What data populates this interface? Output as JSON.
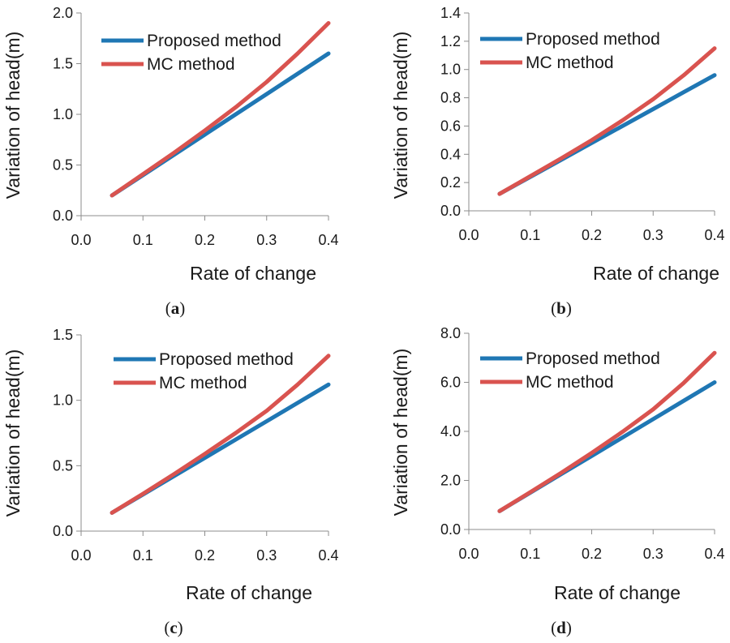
{
  "chart_data": [
    {
      "type": "line",
      "panel": "a",
      "xlabel": "Rate of change",
      "ylabel": "Variation of head(m)",
      "xlim": [
        0.0,
        0.4
      ],
      "ylim": [
        0.0,
        2.0
      ],
      "x_ticks": [
        "0.0",
        "0.1",
        "0.2",
        "0.3",
        "0.4"
      ],
      "y_ticks": [
        "0.0",
        "0.5",
        "1.0",
        "1.5",
        "2.0"
      ],
      "legend_position": "top-left",
      "series": [
        {
          "name": "Proposed method",
          "color": "#1f77b4",
          "x": [
            0.05,
            0.1,
            0.15,
            0.2,
            0.25,
            0.3,
            0.35,
            0.4
          ],
          "values": [
            0.2,
            0.4,
            0.6,
            0.8,
            1.0,
            1.2,
            1.4,
            1.6
          ]
        },
        {
          "name": "MC method",
          "color": "#d9534f",
          "x": [
            0.05,
            0.1,
            0.15,
            0.2,
            0.25,
            0.3,
            0.35,
            0.4
          ],
          "values": [
            0.2,
            0.41,
            0.62,
            0.84,
            1.07,
            1.32,
            1.6,
            1.9
          ]
        }
      ]
    },
    {
      "type": "line",
      "panel": "b",
      "xlabel": "Rate of change",
      "ylabel": "Variation of head(m)",
      "xlim": [
        0.0,
        0.4
      ],
      "ylim": [
        0.0,
        1.4
      ],
      "x_ticks": [
        "0.0",
        "0.1",
        "0.2",
        "0.3",
        "0.4"
      ],
      "y_ticks": [
        "0.0",
        "0.2",
        "0.4",
        "0.6",
        "0.8",
        "1.0",
        "1.2",
        "1.4"
      ],
      "legend_position": "top-left",
      "series": [
        {
          "name": "Proposed method",
          "color": "#1f77b4",
          "x": [
            0.05,
            0.1,
            0.15,
            0.2,
            0.25,
            0.3,
            0.35,
            0.4
          ],
          "values": [
            0.12,
            0.24,
            0.36,
            0.48,
            0.6,
            0.72,
            0.84,
            0.96
          ]
        },
        {
          "name": "MC method",
          "color": "#d9534f",
          "x": [
            0.05,
            0.1,
            0.15,
            0.2,
            0.25,
            0.3,
            0.35,
            0.4
          ],
          "values": [
            0.12,
            0.245,
            0.37,
            0.5,
            0.64,
            0.79,
            0.96,
            1.15
          ]
        }
      ]
    },
    {
      "type": "line",
      "panel": "c",
      "xlabel": "Rate of change",
      "ylabel": "Variation of head(m)",
      "xlim": [
        0.0,
        0.4
      ],
      "ylim": [
        0.0,
        1.5
      ],
      "x_ticks": [
        "0.0",
        "0.1",
        "0.2",
        "0.3",
        "0.4"
      ],
      "y_ticks": [
        "0.0",
        "0.5",
        "1.0",
        "1.5"
      ],
      "legend_position": "top-left",
      "series": [
        {
          "name": "Proposed method",
          "color": "#1f77b4",
          "x": [
            0.05,
            0.1,
            0.15,
            0.2,
            0.25,
            0.3,
            0.35,
            0.4
          ],
          "values": [
            0.14,
            0.28,
            0.42,
            0.56,
            0.7,
            0.84,
            0.98,
            1.12
          ]
        },
        {
          "name": "MC method",
          "color": "#d9534f",
          "x": [
            0.05,
            0.1,
            0.15,
            0.2,
            0.25,
            0.3,
            0.35,
            0.4
          ],
          "values": [
            0.14,
            0.285,
            0.435,
            0.59,
            0.75,
            0.92,
            1.12,
            1.34
          ]
        }
      ]
    },
    {
      "type": "line",
      "panel": "d",
      "xlabel": "Rate of change",
      "ylabel": "Variation of head(m)",
      "xlim": [
        0.0,
        0.4
      ],
      "ylim": [
        0.0,
        8.0
      ],
      "x_ticks": [
        "0.0",
        "0.1",
        "0.2",
        "0.3",
        "0.4"
      ],
      "y_ticks": [
        "0.0",
        "2.0",
        "4.0",
        "6.0",
        "8.0"
      ],
      "legend_position": "top-left",
      "series": [
        {
          "name": "Proposed method",
          "color": "#1f77b4",
          "x": [
            0.05,
            0.1,
            0.15,
            0.2,
            0.25,
            0.3,
            0.35,
            0.4
          ],
          "values": [
            0.75,
            1.5,
            2.25,
            3.0,
            3.75,
            4.5,
            5.25,
            6.0
          ]
        },
        {
          "name": "MC method",
          "color": "#d9534f",
          "x": [
            0.05,
            0.1,
            0.15,
            0.2,
            0.25,
            0.3,
            0.35,
            0.4
          ],
          "values": [
            0.75,
            1.52,
            2.3,
            3.12,
            3.98,
            4.9,
            5.98,
            7.2
          ]
        }
      ]
    }
  ],
  "captions": {
    "open": "(",
    "close": ")",
    "a": "a",
    "b": "b",
    "c": "c",
    "d": "d"
  }
}
